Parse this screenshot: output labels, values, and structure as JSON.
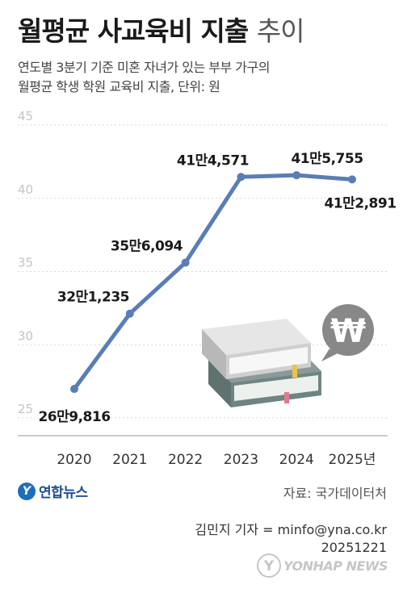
{
  "title_bold": "월평균 사교육비 지출",
  "title_light": "추이",
  "subtitle": "연도별 3분기 기준 미혼 자녀가 있는 부부 가구의\n월평균 학생 학원 교육비 지출, 단위: 원",
  "logo_text": "연합뉴스",
  "source": "자료: 국가데이터처",
  "credit_line1": "김민지 기자 = minfo@yna.co.kr",
  "credit_line2": "20251221",
  "watermark_text": "YONHAP NEWS",
  "won_symbol": "₩",
  "colors": {
    "line": "#5a7db5",
    "grid": "#d8d8d8",
    "won_badge": "#888888"
  },
  "chart_data": {
    "type": "line",
    "title": "",
    "xlabel": "",
    "ylabel": "",
    "x": [
      "2020",
      "2021",
      "2022",
      "2023",
      "2024",
      "2025년"
    ],
    "y_tick_labels": [
      "25",
      "30",
      "35",
      "40",
      "45"
    ],
    "ylim": [
      25,
      45
    ],
    "grid": true,
    "legend": "none",
    "series": [
      {
        "values": [
          269816,
          321235,
          356094,
          414571,
          415755,
          412891
        ],
        "labels": [
          "26만9,816",
          "32만1,235",
          "35만6,094",
          "41만4,571",
          "41만5,755",
          "41만2,891"
        ]
      }
    ]
  }
}
